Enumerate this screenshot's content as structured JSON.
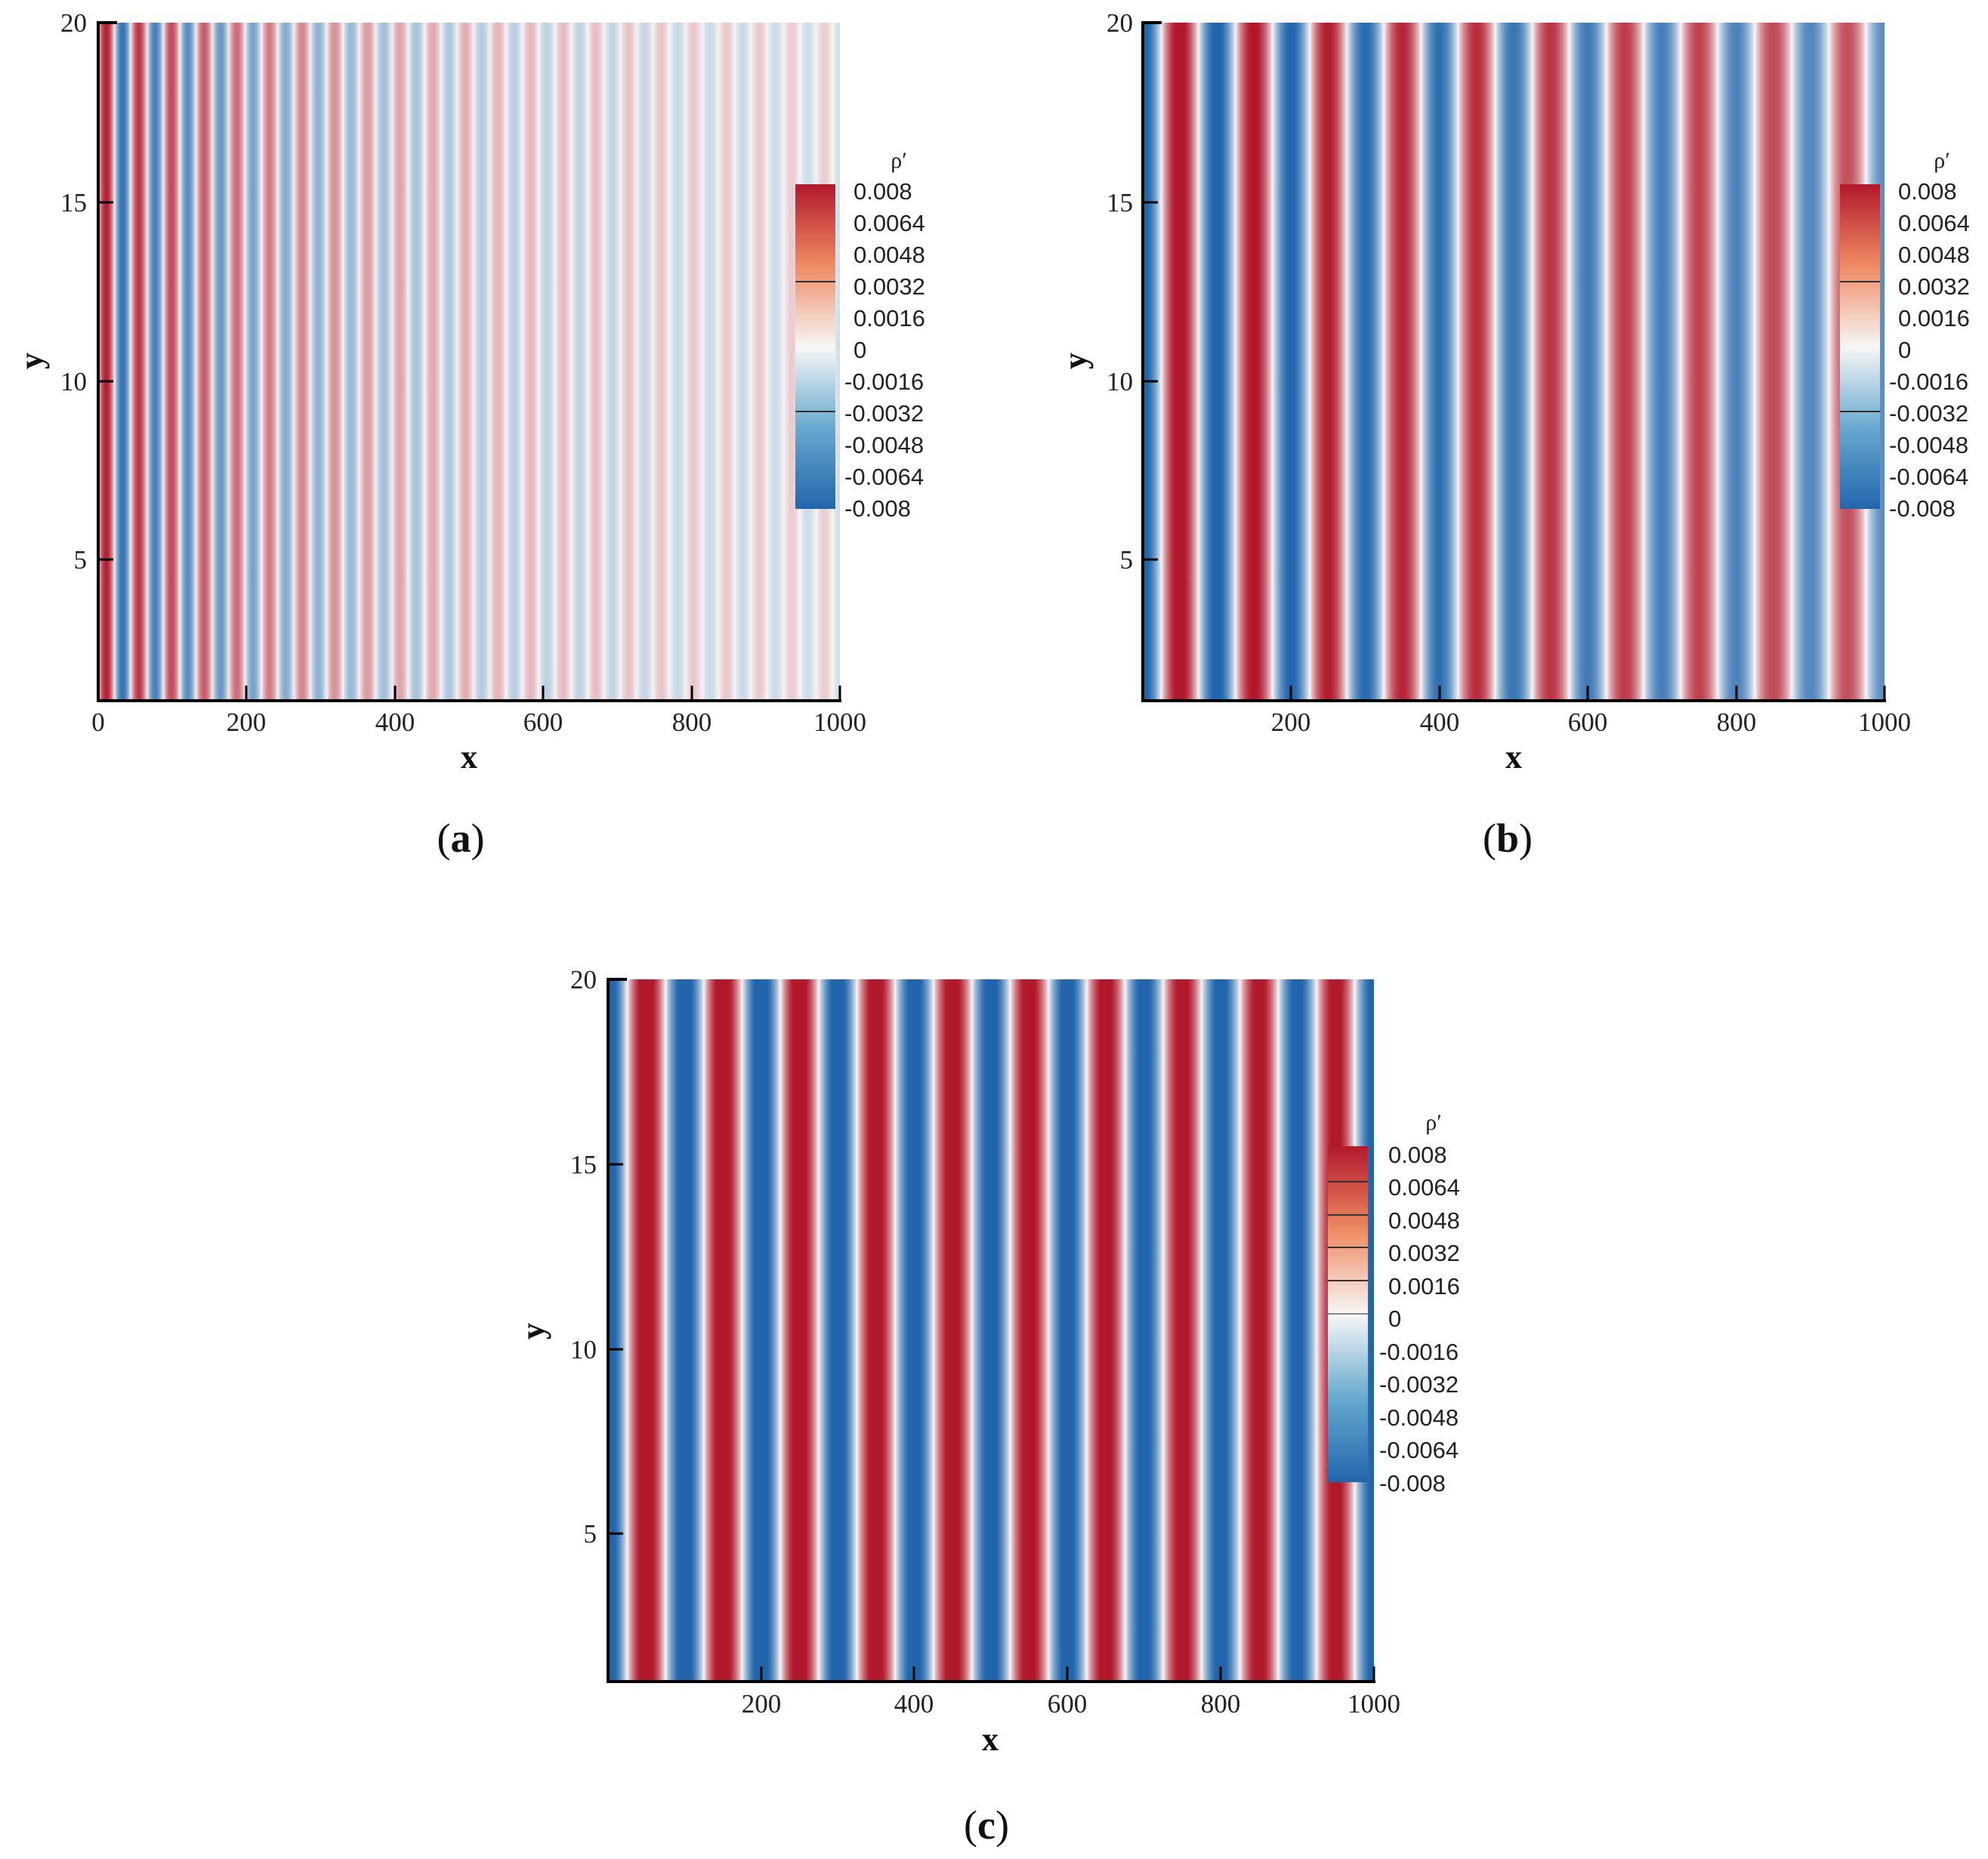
{
  "figure": {
    "panels": [
      {
        "id": "a",
        "caption": "a",
        "paren_open": "(",
        "paren_close": ")"
      },
      {
        "id": "b",
        "caption": "b",
        "paren_open": "(",
        "paren_close": ")"
      },
      {
        "id": "c",
        "caption": "c",
        "paren_open": "(",
        "paren_close": ")"
      }
    ]
  },
  "colors": {
    "red": "#b2182b",
    "blue": "#2166ac",
    "neutral": "#f7f7f7",
    "axis": "#000000"
  },
  "chart_data": [
    {
      "type": "heatmap",
      "panel": "a",
      "title": "",
      "xlabel": "x",
      "ylabel": "y",
      "xlim": [
        0,
        1000
      ],
      "ylim": [
        1,
        20
      ],
      "xticks": [
        0,
        200,
        400,
        600,
        800,
        1000
      ],
      "xtick_labels": [
        "0",
        "200",
        "400",
        "600",
        "800",
        "1000"
      ],
      "yticks": [
        5,
        10,
        15,
        20
      ],
      "ytick_labels": [
        "5",
        "10",
        "15",
        "20"
      ],
      "field": "rho'",
      "wave": {
        "description": "planar wave in x, uniform in y, amplitude decaying with x",
        "wavelength": 44,
        "amplitude_at_inlet": 0.008,
        "decay_length": 280,
        "floor_amplitude": 0.0009,
        "phase_at_x0": 0.25
      },
      "legend": {
        "title": "ρ′",
        "placement": "right",
        "levels": [
          "0.008",
          "0.0064",
          "0.0048",
          "0.0032",
          "0.0016",
          "0",
          "-0.0016",
          "-0.0032",
          "-0.0048",
          "-0.0064",
          "-0.008"
        ],
        "range": [
          -0.008,
          0.008
        ]
      }
    },
    {
      "type": "heatmap",
      "panel": "b",
      "title": "",
      "xlabel": "x",
      "ylabel": "y",
      "xlim": [
        0,
        1000
      ],
      "ylim": [
        1,
        20
      ],
      "xticks": [
        200,
        400,
        600,
        800,
        1000
      ],
      "xtick_labels": [
        "200",
        "400",
        "600",
        "800",
        "1000"
      ],
      "yticks": [
        5,
        10,
        15,
        20
      ],
      "ytick_labels": [
        "5",
        "10",
        "15",
        "20"
      ],
      "field": "rho'",
      "wave": {
        "description": "planar wave in x, uniform in y, weak amplitude decay",
        "wavelength": 100,
        "amplitude_at_inlet": 0.0088,
        "decay_length": 2200,
        "floor_amplitude": 0.0,
        "phase_at_x0": 0.0
      },
      "legend": {
        "title": "ρ′",
        "placement": "right",
        "levels": [
          "0.008",
          "0.0064",
          "0.0048",
          "0.0032",
          "0.0016",
          "0",
          "-0.0016",
          "-0.0032",
          "-0.0048",
          "-0.0064",
          "-0.008"
        ],
        "range": [
          -0.008,
          0.008
        ]
      }
    },
    {
      "type": "heatmap",
      "panel": "c",
      "title": "",
      "xlabel": "x",
      "ylabel": "y",
      "xlim": [
        0,
        1000
      ],
      "ylim": [
        1,
        20
      ],
      "xticks": [
        200,
        400,
        600,
        800,
        1000
      ],
      "xtick_labels": [
        "200",
        "400",
        "600",
        "800",
        "1000"
      ],
      "yticks": [
        5,
        10,
        15,
        20
      ],
      "ytick_labels": [
        "5",
        "10",
        "15",
        "20"
      ],
      "field": "rho'",
      "wave": {
        "description": "planar wave in x, uniform in y, nearly constant amplitude",
        "wavelength": 100,
        "amplitude_at_inlet": 0.0095,
        "decay_length": 9000,
        "floor_amplitude": 0.0,
        "phase_at_x0": 0.0
      },
      "legend": {
        "title": "ρ′",
        "placement": "right",
        "levels": [
          "0.008",
          "0.0064",
          "0.0048",
          "0.0032",
          "0.0016",
          "0",
          "-0.0016",
          "-0.0032",
          "-0.0048",
          "-0.0064",
          "-0.008"
        ],
        "range": [
          -0.008,
          0.008
        ]
      }
    }
  ]
}
